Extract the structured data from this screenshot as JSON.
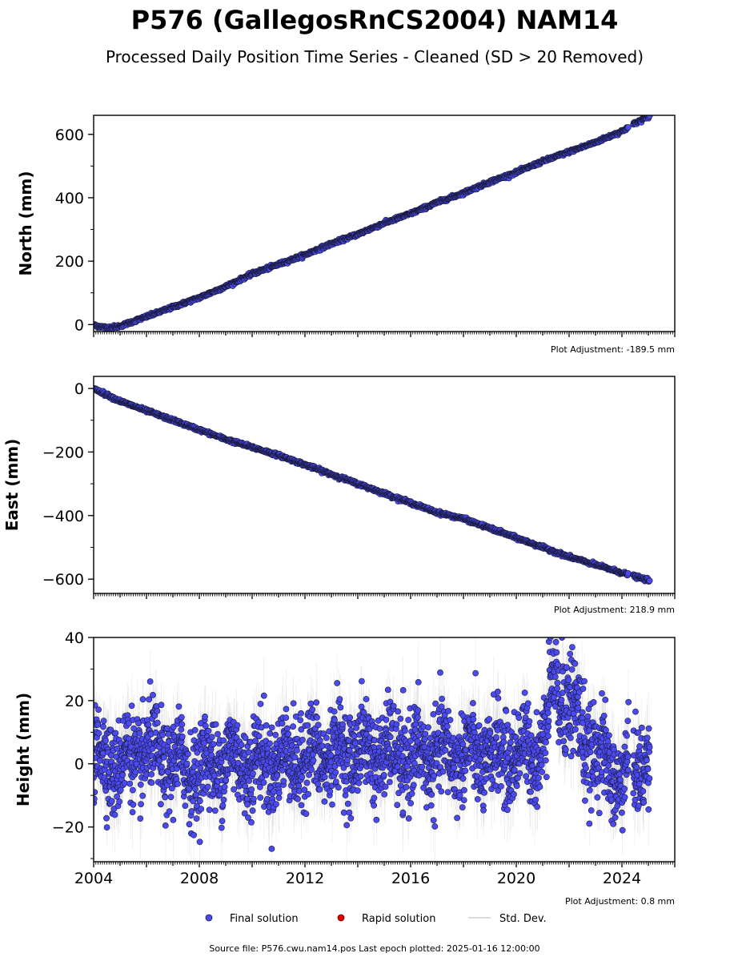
{
  "page": {
    "title": "P576 (GallegosRnCS2004) NAM14",
    "subtitle": "Processed Daily Position Time Series - Cleaned (SD > 20 Removed)",
    "source_note": "Source file: P576.cwu.nam14.pos  Last epoch plotted: 2025-01-16 12:00:00"
  },
  "colors": {
    "final": "#4a4af0",
    "final_edge": "#1a1a3a",
    "rapid": "#e00000",
    "stddev": "#bdbdbd"
  },
  "legend": {
    "final_label": "Final solution",
    "rapid_label": "Rapid solution",
    "stddev_label": "Std. Dev."
  },
  "chart_data": [
    {
      "type": "scatter",
      "ylabel": "North (mm)",
      "xlim": [
        2004.0,
        2026.0
      ],
      "ylim": [
        -22,
        660
      ],
      "yticks": [
        0,
        200,
        400,
        600
      ],
      "ytick_labels": [
        "0",
        "200",
        "400",
        "600"
      ],
      "adjustment": "Plot Adjustment: -189.5 mm",
      "series": [
        {
          "x": [
            2004.0,
            2004.5,
            2005.0,
            2006.0,
            2007.0,
            2008.0,
            2009.0,
            2010.0,
            2011.0,
            2012.0,
            2013.0,
            2014.0,
            2015.0,
            2016.0,
            2017.0,
            2018.0,
            2019.0,
            2020.0,
            2021.0,
            2022.0,
            2023.0,
            2024.0,
            2024.5,
            2025.05
          ],
          "y": [
            -2,
            -10,
            -5,
            25,
            55,
            85,
            120,
            160,
            190,
            220,
            255,
            285,
            320,
            350,
            385,
            415,
            450,
            480,
            515,
            545,
            575,
            610,
            635,
            658
          ]
        }
      ]
    },
    {
      "type": "scatter",
      "ylabel": "East (mm)",
      "xlim": [
        2004.0,
        2026.0
      ],
      "ylim": [
        -645,
        38
      ],
      "yticks": [
        0,
        -200,
        -400,
        -600
      ],
      "ytick_labels": [
        "0",
        "−200",
        "−400",
        "−600"
      ],
      "adjustment": "Plot Adjustment: 218.9 mm",
      "series": [
        {
          "x": [
            2004.0,
            2005.0,
            2006.0,
            2007.0,
            2008.0,
            2009.0,
            2010.0,
            2011.0,
            2012.0,
            2013.0,
            2014.0,
            2015.0,
            2016.0,
            2017.0,
            2018.0,
            2019.0,
            2020.0,
            2021.0,
            2022.0,
            2023.0,
            2024.0,
            2025.05
          ],
          "y": [
            0,
            -40,
            -70,
            -100,
            -130,
            -160,
            -185,
            -210,
            -240,
            -270,
            -300,
            -330,
            -360,
            -390,
            -410,
            -440,
            -470,
            -500,
            -530,
            -555,
            -580,
            -605
          ]
        }
      ]
    },
    {
      "type": "scatter",
      "ylabel": "Height (mm)",
      "xlim": [
        2004.0,
        2026.0
      ],
      "ylim": [
        -31,
        40
      ],
      "yticks": [
        40,
        20,
        0,
        -20
      ],
      "ytick_labels": [
        "40",
        "20",
        "0",
        "−20"
      ],
      "xticks": [
        2004,
        2008,
        2012,
        2016,
        2020,
        2024
      ],
      "xtick_labels": [
        "2004",
        "2008",
        "2012",
        "2016",
        "2020",
        "2024"
      ],
      "adjustment": "Plot Adjustment: 0.8 mm",
      "series": [
        {
          "x": [
            2004.0,
            2005.0,
            2006.0,
            2007.0,
            2008.0,
            2009.0,
            2010.0,
            2011.0,
            2012.0,
            2013.0,
            2014.0,
            2015.0,
            2016.0,
            2017.0,
            2018.0,
            2019.0,
            2020.0,
            2021.0,
            2021.4,
            2022.0,
            2022.5,
            2023.0,
            2024.0,
            2024.5,
            2025.05
          ],
          "y": [
            2,
            0,
            4,
            0,
            -2,
            2,
            0,
            1,
            2,
            3,
            4,
            3,
            2,
            3,
            3,
            2,
            3,
            5,
            30,
            20,
            10,
            3,
            -5,
            0,
            2
          ]
        }
      ]
    }
  ]
}
